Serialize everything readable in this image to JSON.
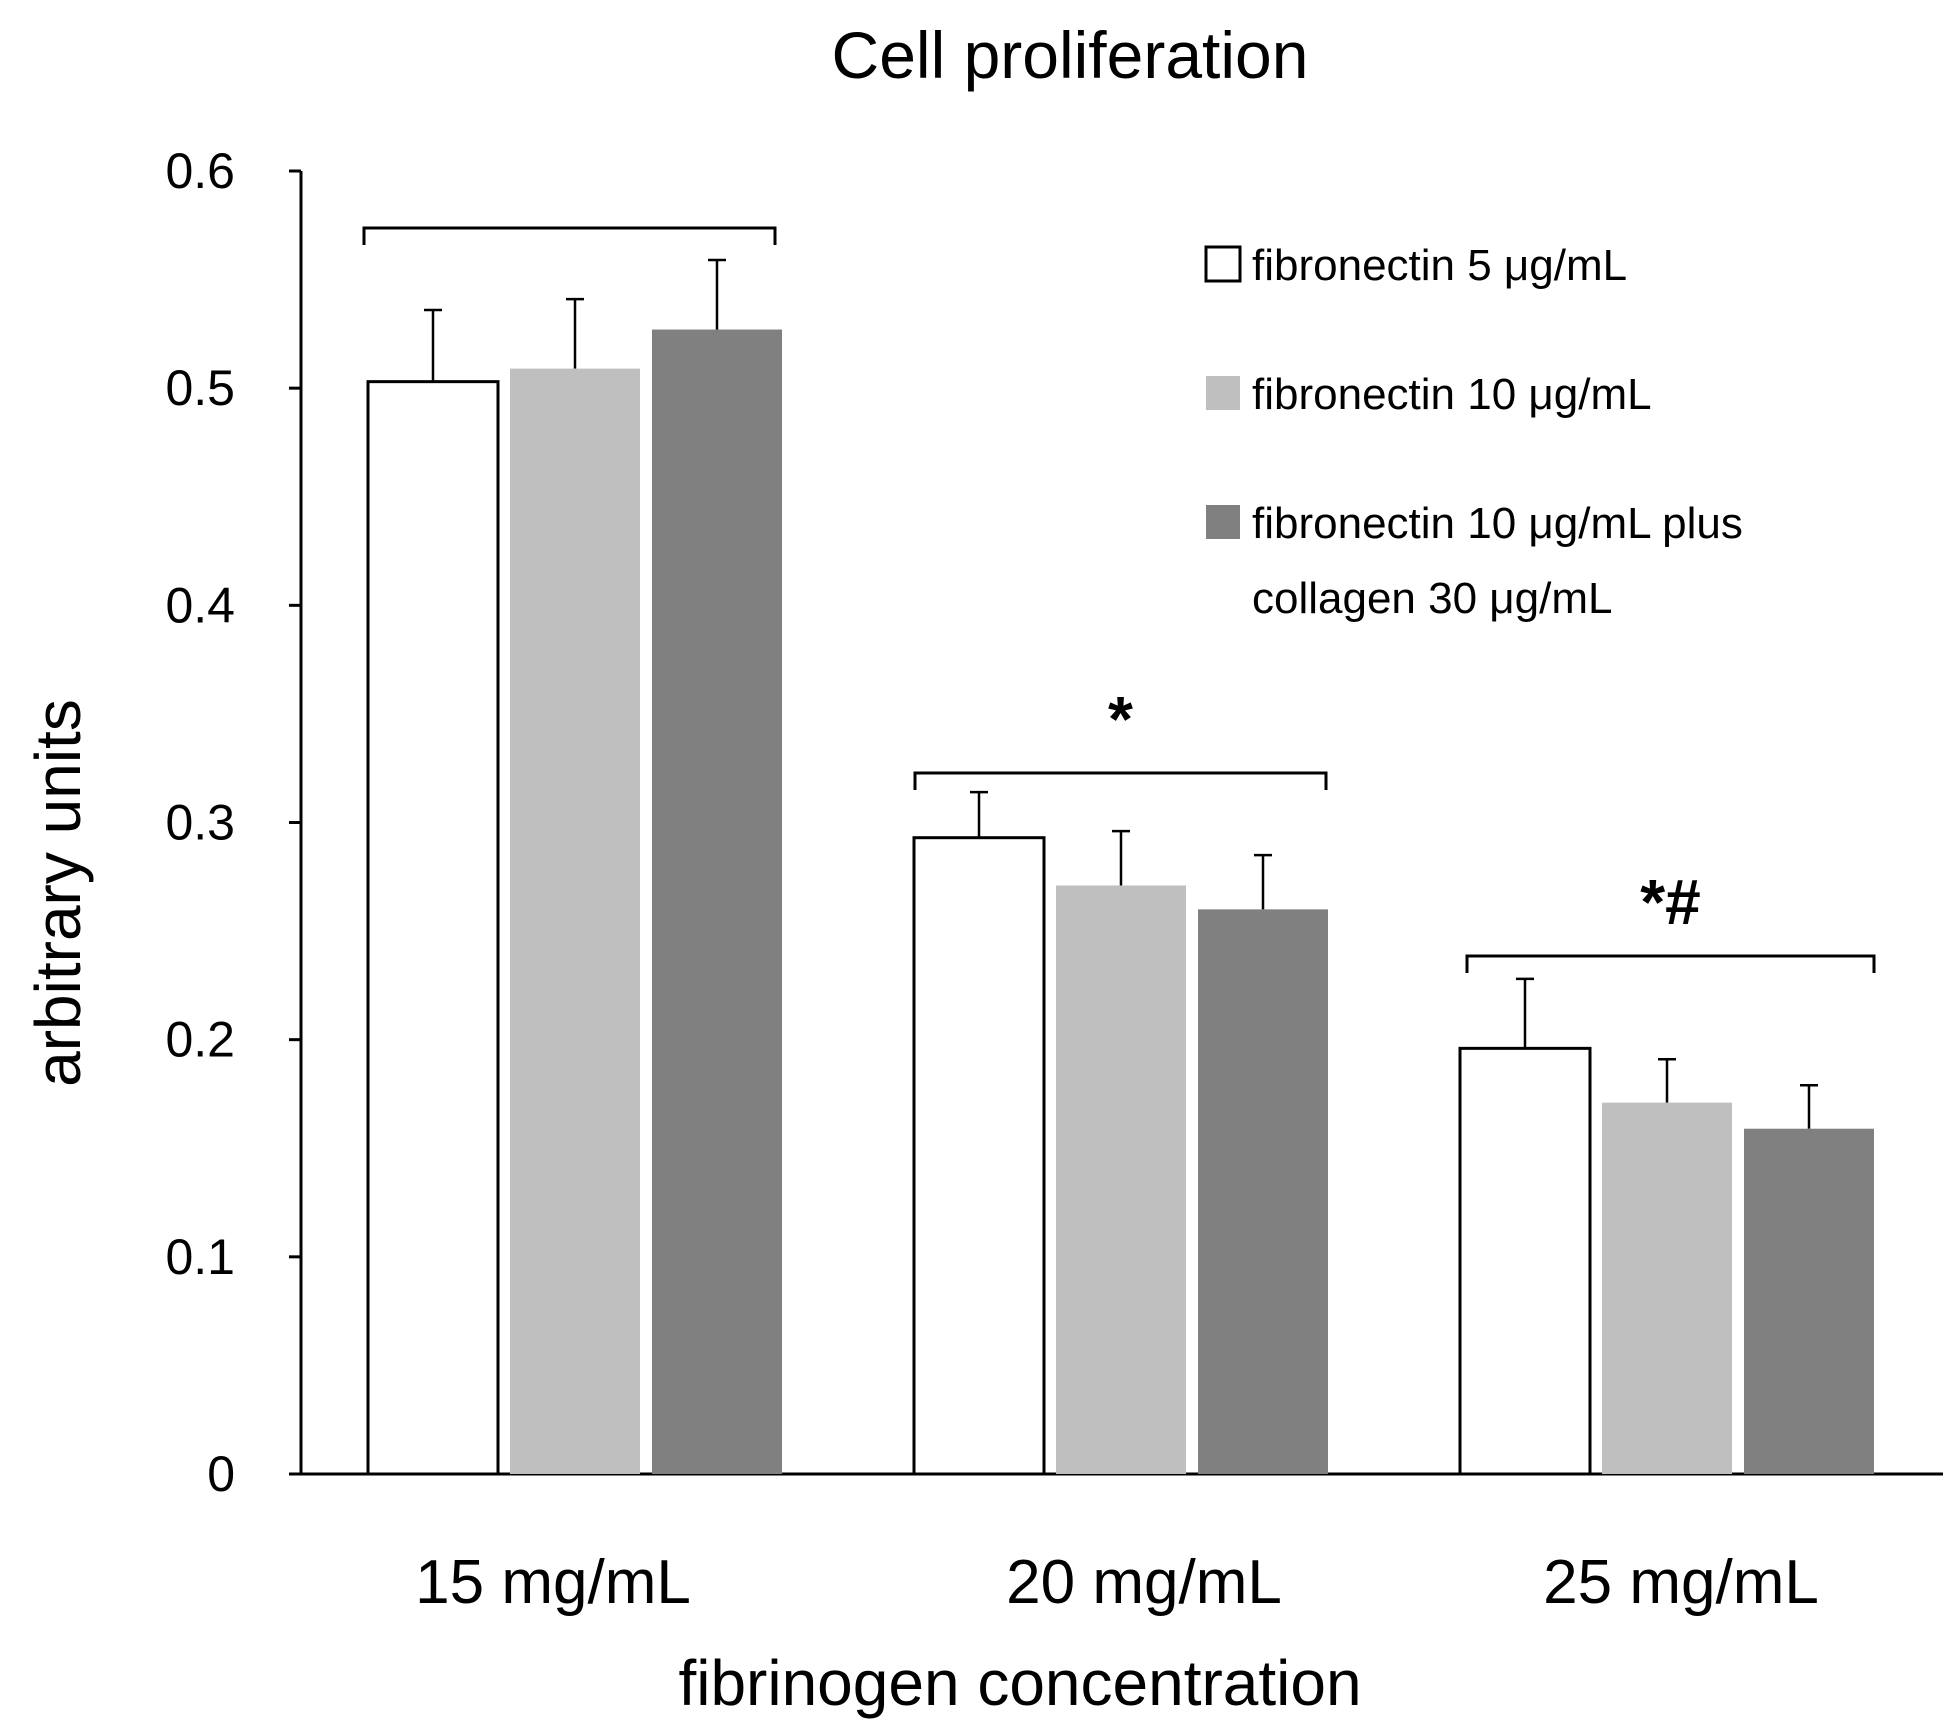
{
  "chart_data": {
    "type": "bar",
    "title": "Cell proliferation",
    "xlabel": "fibrinogen concentration",
    "ylabel": "arbitrary units",
    "ylim": [
      0,
      0.6
    ],
    "yticks": [
      0,
      0.1,
      0.2,
      0.3,
      0.4,
      0.5,
      0.6
    ],
    "ytick_labels": [
      "0",
      "0.1",
      "0.2",
      "0.3",
      "0.4",
      "0.5",
      "0.6"
    ],
    "categories": [
      "15 mg/mL",
      "20 mg/mL",
      "25 mg/mL"
    ],
    "series": [
      {
        "name": "fibronectin  5 μg/mL",
        "color": "#ffffff",
        "stroke": "#000000",
        "values": [
          0.503,
          0.293,
          0.196
        ],
        "errors": [
          0.033,
          0.021,
          0.032
        ]
      },
      {
        "name": "fibronectin  10 μg/mL",
        "color": "#bfbfbf",
        "stroke": "none",
        "values": [
          0.509,
          0.271,
          0.171
        ],
        "errors": [
          0.032,
          0.025,
          0.02
        ]
      },
      {
        "name": "fibronectin 10 μg/mL plus collagen 30 μg/mL",
        "color": "#808080",
        "stroke": "none",
        "values": [
          0.527,
          0.26,
          0.159
        ],
        "errors": [
          0.032,
          0.025,
          0.02
        ]
      }
    ],
    "legend_lines": [
      [
        "fibronectin  5 μg/mL"
      ],
      [
        "fibronectin  10 μg/mL"
      ],
      [
        "fibronectin 10 μg/mL plus",
        "collagen 30 μg/mL"
      ]
    ],
    "legend_position": "top-right",
    "significance": [
      {
        "category": "15 mg/mL",
        "label": ""
      },
      {
        "category": "20 mg/mL",
        "label": "*"
      },
      {
        "category": "25 mg/mL",
        "label": "*#"
      }
    ]
  }
}
